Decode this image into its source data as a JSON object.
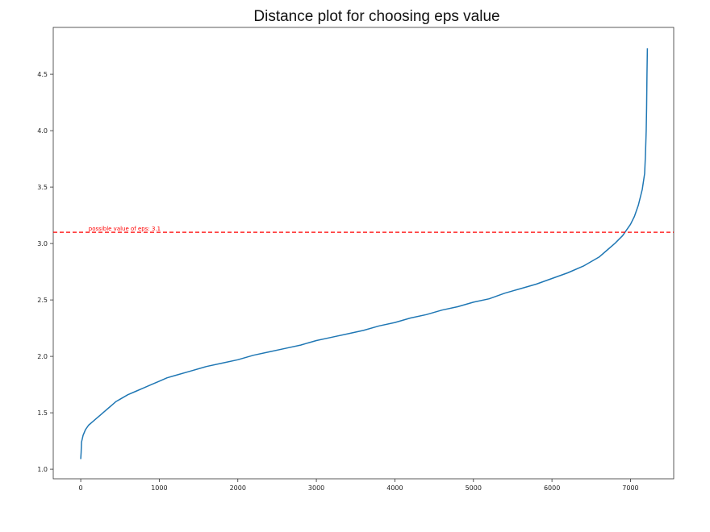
{
  "chart_data": {
    "type": "line",
    "title": "Distance plot for choosing eps value",
    "xlabel": "",
    "ylabel": "",
    "xlim": [
      -350,
      7550
    ],
    "ylim": [
      0.915,
      4.915
    ],
    "x_ticks": [
      0,
      1000,
      2000,
      3000,
      4000,
      5000,
      6000,
      7000
    ],
    "y_ticks": [
      1.0,
      1.5,
      2.0,
      2.5,
      3.0,
      3.5,
      4.0,
      4.5
    ],
    "grid": false,
    "legend": "none",
    "series": [
      {
        "color": "#1f77b4",
        "points": [
          [
            0,
            1.09
          ],
          [
            5,
            1.15
          ],
          [
            10,
            1.24
          ],
          [
            30,
            1.3
          ],
          [
            60,
            1.35
          ],
          [
            100,
            1.39
          ],
          [
            150,
            1.42
          ],
          [
            200,
            1.45
          ],
          [
            250,
            1.48
          ],
          [
            300,
            1.51
          ],
          [
            350,
            1.54
          ],
          [
            400,
            1.57
          ],
          [
            450,
            1.6
          ],
          [
            500,
            1.62
          ],
          [
            600,
            1.66
          ],
          [
            700,
            1.69
          ],
          [
            800,
            1.72
          ],
          [
            900,
            1.75
          ],
          [
            1000,
            1.78
          ],
          [
            1100,
            1.81
          ],
          [
            1200,
            1.83
          ],
          [
            1400,
            1.87
          ],
          [
            1600,
            1.91
          ],
          [
            1800,
            1.94
          ],
          [
            2000,
            1.97
          ],
          [
            2200,
            2.01
          ],
          [
            2400,
            2.04
          ],
          [
            2600,
            2.07
          ],
          [
            2800,
            2.1
          ],
          [
            3000,
            2.14
          ],
          [
            3200,
            2.17
          ],
          [
            3400,
            2.2
          ],
          [
            3600,
            2.23
          ],
          [
            3800,
            2.27
          ],
          [
            4000,
            2.3
          ],
          [
            4200,
            2.34
          ],
          [
            4400,
            2.37
          ],
          [
            4600,
            2.41
          ],
          [
            4800,
            2.44
          ],
          [
            5000,
            2.48
          ],
          [
            5200,
            2.51
          ],
          [
            5400,
            2.56
          ],
          [
            5600,
            2.6
          ],
          [
            5800,
            2.64
          ],
          [
            6000,
            2.69
          ],
          [
            6200,
            2.74
          ],
          [
            6400,
            2.8
          ],
          [
            6600,
            2.88
          ],
          [
            6700,
            2.94
          ],
          [
            6800,
            3.0
          ],
          [
            6900,
            3.07
          ],
          [
            6950,
            3.12
          ],
          [
            7000,
            3.17
          ],
          [
            7050,
            3.24
          ],
          [
            7100,
            3.34
          ],
          [
            7150,
            3.48
          ],
          [
            7180,
            3.62
          ],
          [
            7190,
            3.78
          ],
          [
            7200,
            4.0
          ],
          [
            7205,
            4.2
          ],
          [
            7210,
            4.5
          ],
          [
            7215,
            4.73
          ]
        ]
      }
    ],
    "reference_line": {
      "orientation": "horizontal",
      "y": 3.1,
      "style": "dashed",
      "color": "#ff0000",
      "label": "possible value of eps: 3.1"
    }
  }
}
